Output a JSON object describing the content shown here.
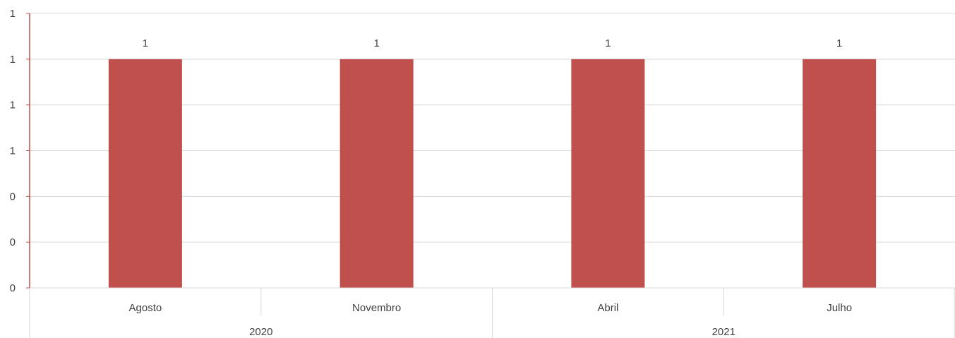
{
  "chart_data": {
    "type": "bar",
    "categories": [
      "Agosto",
      "Novembro",
      "Abril",
      "Julho"
    ],
    "groups": [
      {
        "label": "2020",
        "categories": [
          "Agosto",
          "Novembro"
        ]
      },
      {
        "label": "2021",
        "categories": [
          "Abril",
          "Julho"
        ]
      }
    ],
    "values": [
      1,
      1,
      1,
      1
    ],
    "data_labels": [
      "1",
      "1",
      "1",
      "1"
    ],
    "title": "",
    "xlabel": "",
    "ylabel": "",
    "ylim": [
      0,
      1.2
    ],
    "y_ticks": [
      0,
      0.2,
      0.4,
      0.6,
      0.8,
      1.0,
      1.2
    ],
    "y_tick_labels": [
      "0",
      "0",
      "0",
      "1",
      "1",
      "1",
      "1"
    ],
    "grid": true,
    "legend": "none",
    "colors": {
      "bar": "#c0504d",
      "axis": "#c0504d",
      "grid": "#d9d9d9",
      "text": "#404040"
    }
  }
}
